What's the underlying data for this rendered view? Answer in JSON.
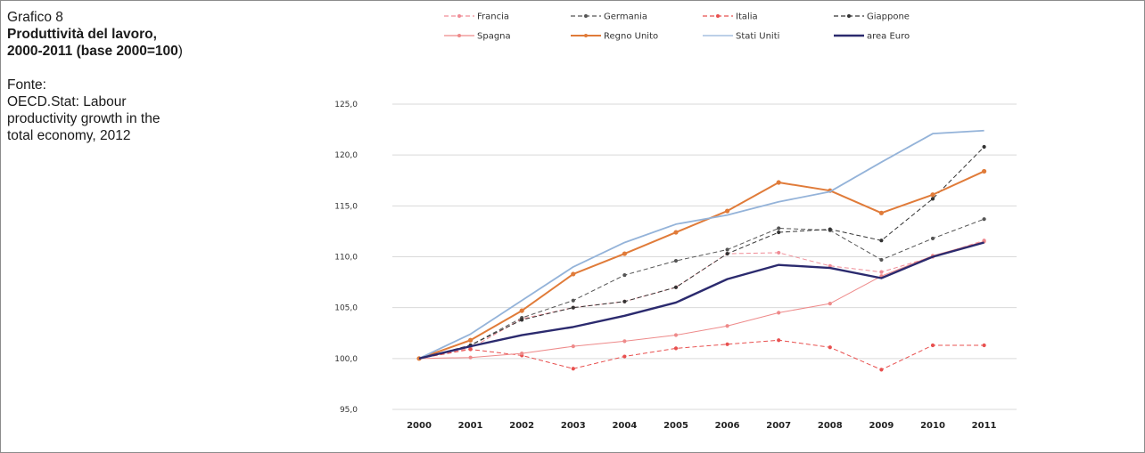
{
  "panel": {
    "label": "Grafico 8",
    "title_line1": "Produttività del lavoro,",
    "title_line2_bold": "2000-2011 (base 2000=100",
    "title_line2_tail": ")",
    "source_heading": "Fonte:",
    "source_lines": [
      "OECD.Stat: Labour",
      "productivity growth in the",
      "total economy, 2012"
    ]
  },
  "chart_data": {
    "type": "line",
    "title": "",
    "xlabel": "",
    "ylabel": "",
    "x": [
      "2000",
      "2001",
      "2002",
      "2003",
      "2004",
      "2005",
      "2006",
      "2007",
      "2008",
      "2009",
      "2010",
      "2011"
    ],
    "ylim": [
      95,
      125
    ],
    "yticks": [
      95,
      100,
      105,
      110,
      115,
      120,
      125
    ],
    "ytick_labels": [
      "95,0",
      "100,0",
      "105,0",
      "110,0",
      "115,0",
      "120,0",
      "125,0"
    ],
    "grid": true,
    "legend_position": "top",
    "series": [
      {
        "name": "Francia",
        "color": "#f08c96",
        "dash": "dashed",
        "marker": "dot",
        "values": [
          100.0,
          101.0,
          103.9,
          105.0,
          105.6,
          107.0,
          110.3,
          110.4,
          109.1,
          108.5,
          110.0,
          111.6
        ]
      },
      {
        "name": "Germania",
        "color": "#555555",
        "dash": "dashed",
        "marker": "dot",
        "values": [
          100.0,
          101.3,
          104.0,
          105.7,
          108.2,
          109.6,
          110.7,
          112.8,
          112.6,
          109.7,
          111.8,
          113.7
        ]
      },
      {
        "name": "Italia",
        "color": "#e8504f",
        "dash": "dashed",
        "marker": "dot",
        "values": [
          100.0,
          100.9,
          100.3,
          99.0,
          100.2,
          101.0,
          101.4,
          101.8,
          101.1,
          98.9,
          101.3,
          101.3
        ]
      },
      {
        "name": "Giappone",
        "color": "#333333",
        "dash": "dashed",
        "marker": "dot",
        "values": [
          100.0,
          101.3,
          103.8,
          105.0,
          105.6,
          107.0,
          110.3,
          112.4,
          112.7,
          111.6,
          115.7,
          120.8
        ]
      },
      {
        "name": "Spagna",
        "color": "#ee8a8a",
        "dash": "solid",
        "marker": "dot",
        "values": [
          100.0,
          100.1,
          100.5,
          101.2,
          101.7,
          102.3,
          103.2,
          104.5,
          105.4,
          108.1,
          110.1,
          111.5
        ]
      },
      {
        "name": "Regno Unito",
        "color": "#e07b39",
        "dash": "solid",
        "marker": "dot",
        "values": [
          100.0,
          101.8,
          104.7,
          108.3,
          110.3,
          112.4,
          114.5,
          117.3,
          116.5,
          114.3,
          116.1,
          118.4
        ]
      },
      {
        "name": "Stati Uniti",
        "color": "#94b3d9",
        "dash": "solid",
        "marker": "none",
        "values": [
          100.0,
          102.4,
          105.7,
          109.0,
          111.4,
          113.2,
          114.1,
          115.4,
          116.4,
          119.3,
          122.1,
          122.4
        ]
      },
      {
        "name": "area Euro",
        "color": "#2b2a6e",
        "dash": "solid",
        "marker": "none",
        "values": [
          100.0,
          101.2,
          102.3,
          103.1,
          104.2,
          105.5,
          107.8,
          109.2,
          108.9,
          107.9,
          110.0,
          111.4
        ]
      }
    ]
  }
}
